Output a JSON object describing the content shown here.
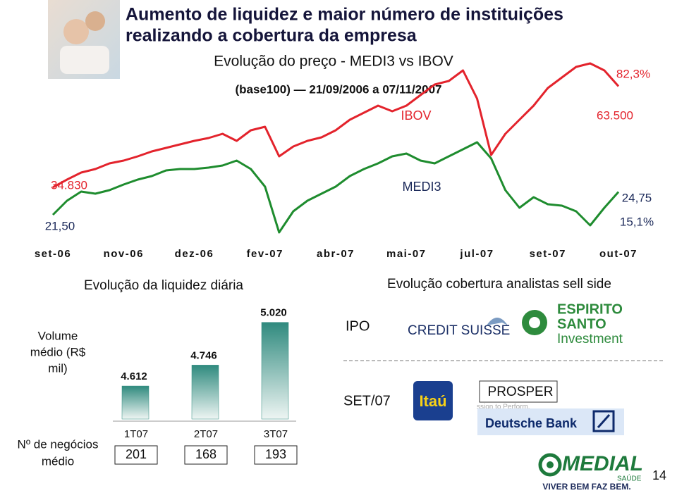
{
  "title": [
    "Aumento de liquidez e maior número de instituições",
    "realizando a cobertura da empresa"
  ],
  "chart_data": [
    {
      "type": "line",
      "title": "Evolução do preço - MEDI3 vs IBOV",
      "subtitle": "(base100) — 21/09/2006 a 07/11/2007",
      "categories": [
        "set-06",
        null,
        null,
        null,
        null,
        "nov-06",
        null,
        null,
        null,
        null,
        "dez-06",
        null,
        null,
        null,
        null,
        "fev-07",
        null,
        null,
        null,
        null,
        "abr-07",
        null,
        null,
        null,
        null,
        "mai-07",
        null,
        null,
        null,
        null,
        "jul-07",
        null,
        null,
        null,
        null,
        "set-07",
        null,
        null,
        null,
        null,
        "out-07"
      ],
      "ylim": [
        20000,
        70000
      ],
      "y2lim": [
        18,
        43
      ],
      "series": [
        {
          "name": "IBOV",
          "color": "#e3232c",
          "values": [
            34830,
            37000,
            39000,
            40000,
            41600,
            42400,
            43600,
            45000,
            46000,
            47000,
            48000,
            48800,
            50000,
            48000,
            51000,
            52000,
            43600,
            46400,
            48000,
            49000,
            51000,
            54000,
            56000,
            58000,
            56400,
            58000,
            61000,
            64000,
            65000,
            68000,
            60000,
            44000,
            50000,
            54000,
            58000,
            63000,
            66000,
            69000,
            70000,
            68000,
            63500
          ]
        },
        {
          "name": "MEDI3",
          "color": "#1e8c2e",
          "axis": "y2",
          "values": [
            21.5,
            23.5,
            24.8,
            24.5,
            25.0,
            25.8,
            26.5,
            27.0,
            27.8,
            28.0,
            28.0,
            28.2,
            28.5,
            29.2,
            28.0,
            25.5,
            19.0,
            22.0,
            23.5,
            24.5,
            25.5,
            27.0,
            28.0,
            28.8,
            29.8,
            30.2,
            29.2,
            28.8,
            29.8,
            30.8,
            31.8,
            29.5,
            25.0,
            22.5,
            24.0,
            23.0,
            22.8,
            22.0,
            20.0,
            22.5,
            24.75
          ]
        }
      ],
      "annotations": [
        "34.830",
        "63.500",
        "82,3%",
        "21,50",
        "24,75",
        "15,1%"
      ]
    },
    {
      "type": "bar",
      "title": "Evolução da liquidez diária",
      "ylabel": [
        "Volume",
        "médio (R$",
        "mil)"
      ],
      "categories": [
        "1T07",
        "2T07",
        "3T07"
      ],
      "values": [
        4612,
        4746,
        5020
      ],
      "value_labels": [
        "4.612",
        "4.746",
        "5.020"
      ],
      "color": "#2f8a7e",
      "ylim": [
        4400,
        5100
      ]
    }
  ],
  "trades": {
    "label": [
      "Nº de negócios",
      "médio"
    ],
    "values": [
      201,
      168,
      193
    ]
  },
  "coverage": {
    "title": "Evolução cobertura analistas sell side",
    "rows": [
      {
        "label": "IPO",
        "brokers": [
          "CREDIT SUISSE",
          [
            "ESPIRITO",
            "SANTO",
            "Investment"
          ]
        ]
      },
      {
        "label": "SET/07",
        "brokers": [
          "Itaú",
          "PROSPER",
          "Deutsche Bank"
        ],
        "tagline": "ssion to Perform."
      }
    ]
  },
  "footer": {
    "brand": "MEDIAL",
    "sub": "SAÚDE",
    "slogan": "VIVER BEM FAZ BEM."
  },
  "page_number": "14"
}
